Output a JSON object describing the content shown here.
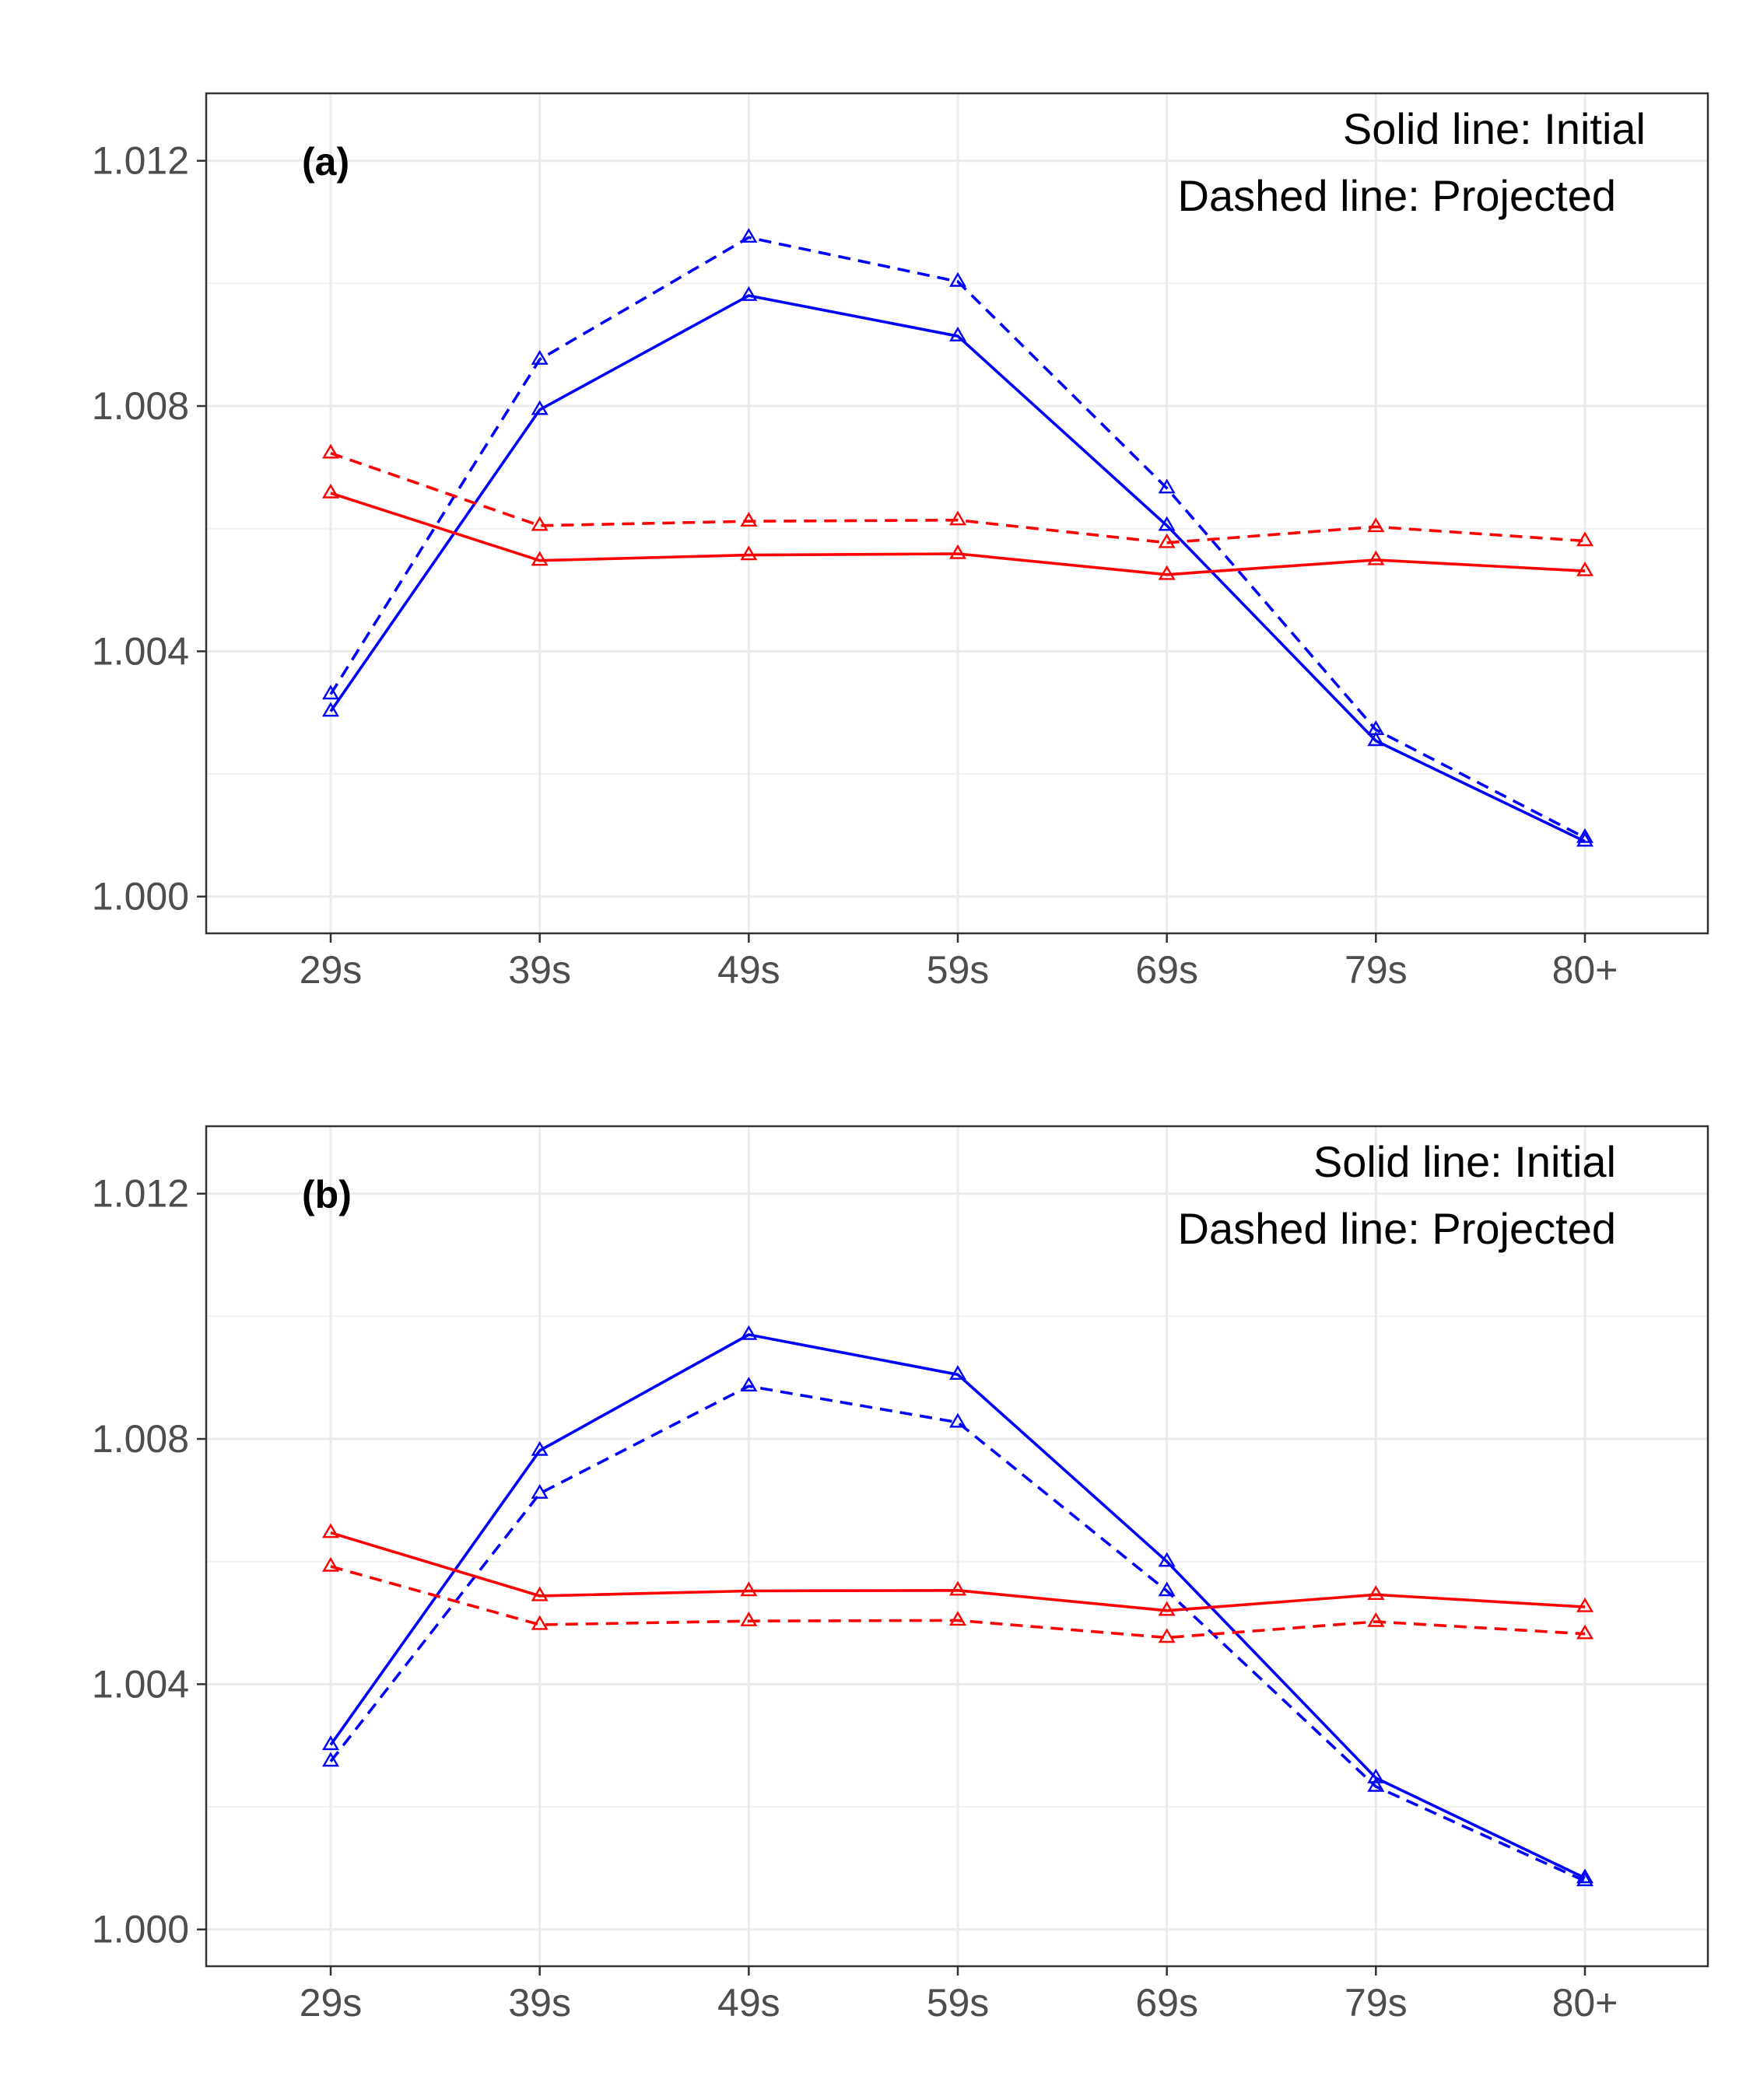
{
  "chart_data": [
    {
      "type": "line",
      "panel_label": "(a)",
      "annotations": [
        "Solid line: Initial",
        "Dashed line: Projected"
      ],
      "categories": [
        "29s",
        "39s",
        "49s",
        "59s",
        "69s",
        "79s",
        "80+"
      ],
      "yticks": [
        "1.000",
        "1.004",
        "1.008",
        "1.012"
      ],
      "ylim": [
        0.9994,
        1.0131
      ],
      "grid": true,
      "series": [
        {
          "color": "#0000ff",
          "linestyle": "solid",
          "marker": "triangle-open",
          "values": [
            1.00302,
            1.00794,
            1.0098,
            1.00914,
            1.00605,
            1.00254,
            1.0009
          ]
        },
        {
          "color": "#0000ff",
          "linestyle": "dashed",
          "marker": "triangle-open",
          "values": [
            1.0033,
            1.00876,
            1.01075,
            1.01003,
            1.00666,
            1.00272,
            1.00096
          ]
        },
        {
          "color": "#ff0000",
          "linestyle": "solid",
          "marker": "triangle-open",
          "values": [
            1.00658,
            1.00548,
            1.00557,
            1.00559,
            1.00525,
            1.00549,
            1.00531
          ]
        },
        {
          "color": "#ff0000",
          "linestyle": "dashed",
          "marker": "triangle-open",
          "values": [
            1.00723,
            1.00605,
            1.00612,
            1.00614,
            1.00577,
            1.00603,
            1.0058
          ]
        }
      ]
    },
    {
      "type": "line",
      "panel_label": "(b)",
      "annotations": [
        "Solid line: Initial",
        "Dashed line: Projected"
      ],
      "categories": [
        "29s",
        "39s",
        "49s",
        "59s",
        "69s",
        "79s",
        "80+"
      ],
      "yticks": [
        "1.000",
        "1.004",
        "1.008",
        "1.012"
      ],
      "ylim": [
        0.9994,
        1.0131
      ],
      "grid": true,
      "series": [
        {
          "color": "#0000ff",
          "linestyle": "solid",
          "marker": "triangle-open",
          "values": [
            1.00301,
            1.00781,
            1.0097,
            1.00905,
            1.006,
            1.00247,
            1.00084
          ]
        },
        {
          "color": "#0000ff",
          "linestyle": "dashed",
          "marker": "triangle-open",
          "values": [
            1.00274,
            1.00711,
            1.00886,
            1.00827,
            1.00552,
            1.00233,
            1.00079
          ]
        },
        {
          "color": "#ff0000",
          "linestyle": "solid",
          "marker": "triangle-open",
          "values": [
            1.00647,
            1.00544,
            1.00552,
            1.00553,
            1.0052,
            1.00546,
            1.00526
          ]
        },
        {
          "color": "#ff0000",
          "linestyle": "dashed",
          "marker": "triangle-open",
          "values": [
            1.00592,
            1.00497,
            1.00503,
            1.00504,
            1.00476,
            1.00502,
            1.00482
          ]
        }
      ]
    }
  ]
}
